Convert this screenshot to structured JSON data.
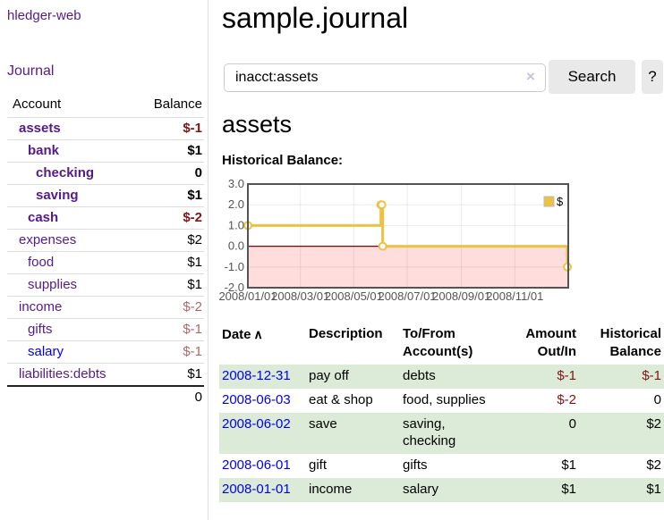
{
  "app": {
    "brand": "hledger-web"
  },
  "sidebar": {
    "journal_label": "Journal",
    "account_header": "Account",
    "balance_header": "Balance",
    "accounts": [
      {
        "name": "assets",
        "balance": "$-1"
      },
      {
        "name": "bank",
        "balance": "$1"
      },
      {
        "name": "checking",
        "balance": "0"
      },
      {
        "name": "saving",
        "balance": "$1"
      },
      {
        "name": "cash",
        "balance": "$-2"
      },
      {
        "name": "expenses",
        "balance": "$2"
      },
      {
        "name": "food",
        "balance": "$1"
      },
      {
        "name": "supplies",
        "balance": "$1"
      },
      {
        "name": "income",
        "balance": "$-2"
      },
      {
        "name": "gifts",
        "balance": "$-1"
      },
      {
        "name": "salary",
        "balance": "$-1"
      },
      {
        "name": "liabilities:debts",
        "balance": "$1"
      }
    ],
    "total": "0"
  },
  "header": {
    "title": "sample.journal"
  },
  "search": {
    "value": "inacct:assets",
    "clear_icon": "×",
    "button_label": "Search",
    "help_label": "?"
  },
  "account_page": {
    "title": "assets",
    "chart_label": "Historical Balance:"
  },
  "chart_data": {
    "type": "line",
    "step": true,
    "title": "Historical Balance:",
    "legend_position": "top-right",
    "series": [
      {
        "name": "$",
        "color": "#EDC240",
        "points": [
          {
            "date": "2008-01-01",
            "day": 0,
            "value": 1
          },
          {
            "date": "2008-06-01",
            "day": 152,
            "value": 2
          },
          {
            "date": "2008-06-02",
            "day": 153,
            "value": 2
          },
          {
            "date": "2008-06-03",
            "day": 154,
            "value": 0
          },
          {
            "date": "2008-12-31",
            "day": 365,
            "value": -1
          }
        ]
      }
    ],
    "xlim_days": [
      0,
      366
    ],
    "ylim": [
      -2,
      3
    ],
    "yticks": [
      {
        "label": "3.0",
        "value": 3
      },
      {
        "label": "2.0",
        "value": 2
      },
      {
        "label": "1.0",
        "value": 1
      },
      {
        "label": "0.0",
        "value": 0
      },
      {
        "label": "-1.0",
        "value": -1
      },
      {
        "label": "-2.0",
        "value": -2
      }
    ],
    "xticks": [
      {
        "label": "2008/01/01",
        "day": 0
      },
      {
        "label": "2008/03/01",
        "day": 60
      },
      {
        "label": "2008/05/01",
        "day": 121
      },
      {
        "label": "2008/07/01",
        "day": 182
      },
      {
        "label": "2008/09/01",
        "day": 244
      },
      {
        "label": "2008/11/01",
        "day": 305
      }
    ],
    "negative_region_color": "#ffdddd",
    "zero_line_color": "#8b0000",
    "grid_color": "rgba(0,0,0,0.08)",
    "frame_color": "#545454",
    "tick_text_color": "#545454"
  },
  "register": {
    "columns": {
      "date": "Date",
      "sort_icon": "∧",
      "description": "Description",
      "tofrom": "To/From Account(s)",
      "amount": "Amount Out/In",
      "balance": "Historical Balance"
    },
    "rows": [
      {
        "date": "2008-12-31",
        "description": "pay off",
        "tofrom": "debts",
        "amount": "$-1",
        "balance": "$-1"
      },
      {
        "date": "2008-06-03",
        "description": "eat & shop",
        "tofrom": "food, supplies",
        "amount": "$-2",
        "balance": "0"
      },
      {
        "date": "2008-06-02",
        "description": "save",
        "tofrom": "saving, checking",
        "amount": "0",
        "balance": "$2"
      },
      {
        "date": "2008-06-01",
        "description": "gift",
        "tofrom": "gifts",
        "amount": "$1",
        "balance": "$2"
      },
      {
        "date": "2008-01-01",
        "description": "income",
        "tofrom": "salary",
        "amount": "$1",
        "balance": "$1"
      }
    ]
  }
}
